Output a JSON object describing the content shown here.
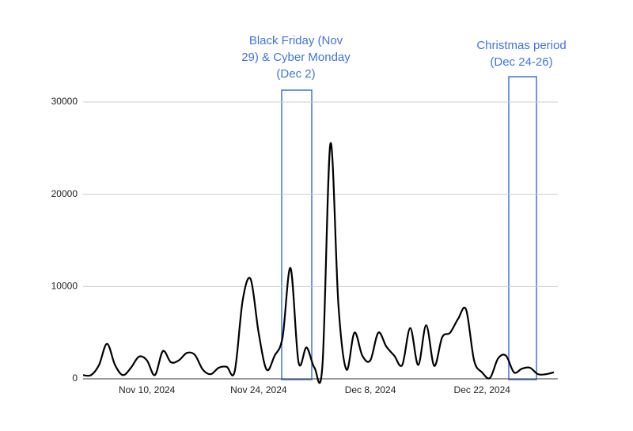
{
  "chart_data": {
    "type": "line",
    "x": [
      "2024-11-02",
      "2024-11-03",
      "2024-11-04",
      "2024-11-05",
      "2024-11-06",
      "2024-11-07",
      "2024-11-08",
      "2024-11-09",
      "2024-11-10",
      "2024-11-11",
      "2024-11-12",
      "2024-11-13",
      "2024-11-14",
      "2024-11-15",
      "2024-11-16",
      "2024-11-17",
      "2024-11-18",
      "2024-11-19",
      "2024-11-20",
      "2024-11-21",
      "2024-11-22",
      "2024-11-23",
      "2024-11-24",
      "2024-11-25",
      "2024-11-26",
      "2024-11-27",
      "2024-11-28",
      "2024-11-29",
      "2024-11-30",
      "2024-12-01",
      "2024-12-02",
      "2024-12-03",
      "2024-12-04",
      "2024-12-05",
      "2024-12-06",
      "2024-12-07",
      "2024-12-08",
      "2024-12-09",
      "2024-12-10",
      "2024-12-11",
      "2024-12-12",
      "2024-12-13",
      "2024-12-14",
      "2024-12-15",
      "2024-12-16",
      "2024-12-17",
      "2024-12-18",
      "2024-12-19",
      "2024-12-20",
      "2024-12-21",
      "2024-12-22",
      "2024-12-23",
      "2024-12-24",
      "2024-12-25",
      "2024-12-26",
      "2024-12-27",
      "2024-12-28",
      "2024-12-29",
      "2024-12-30",
      "2024-12-31"
    ],
    "series": [
      {
        "color": "#000000",
        "values": [
          400,
          400,
          1500,
          3800,
          1500,
          400,
          1200,
          2400,
          2000,
          400,
          3000,
          1800,
          2000,
          2800,
          2600,
          1000,
          500,
          1200,
          1300,
          800,
          8500,
          10800,
          5000,
          1000,
          2500,
          4500,
          12000,
          1800,
          3400,
          1200,
          1500,
          25500,
          8000,
          1000,
          5000,
          2500,
          2000,
          5000,
          3500,
          2500,
          1500,
          5500,
          1500,
          5800,
          1400,
          4500,
          5000,
          6500,
          7500,
          2000,
          700,
          100,
          2200,
          2500,
          700,
          1100,
          1200,
          500,
          500,
          700
        ]
      }
    ],
    "xlim": [
      "2024-11-02",
      "2024-12-31"
    ],
    "xticks": [
      {
        "value": "2024-11-10",
        "label": "Nov 10, 2024"
      },
      {
        "value": "2024-11-24",
        "label": "Nov 24, 2024"
      },
      {
        "value": "2024-12-08",
        "label": "Dec 8, 2024"
      },
      {
        "value": "2024-12-22",
        "label": "Dec 22, 2024"
      }
    ],
    "ylim": [
      0,
      30000
    ],
    "yticks": [
      0,
      10000,
      20000,
      30000
    ],
    "grid": true,
    "annotations": [
      {
        "lines": [
          "Black Friday (Nov",
          "29) & Cyber Monday",
          "(Dec 2)"
        ],
        "color": "#3f73e0"
      },
      {
        "lines": [
          "Christmas period",
          "(Dec 24-26)"
        ],
        "color": "#3f73e0"
      }
    ]
  }
}
